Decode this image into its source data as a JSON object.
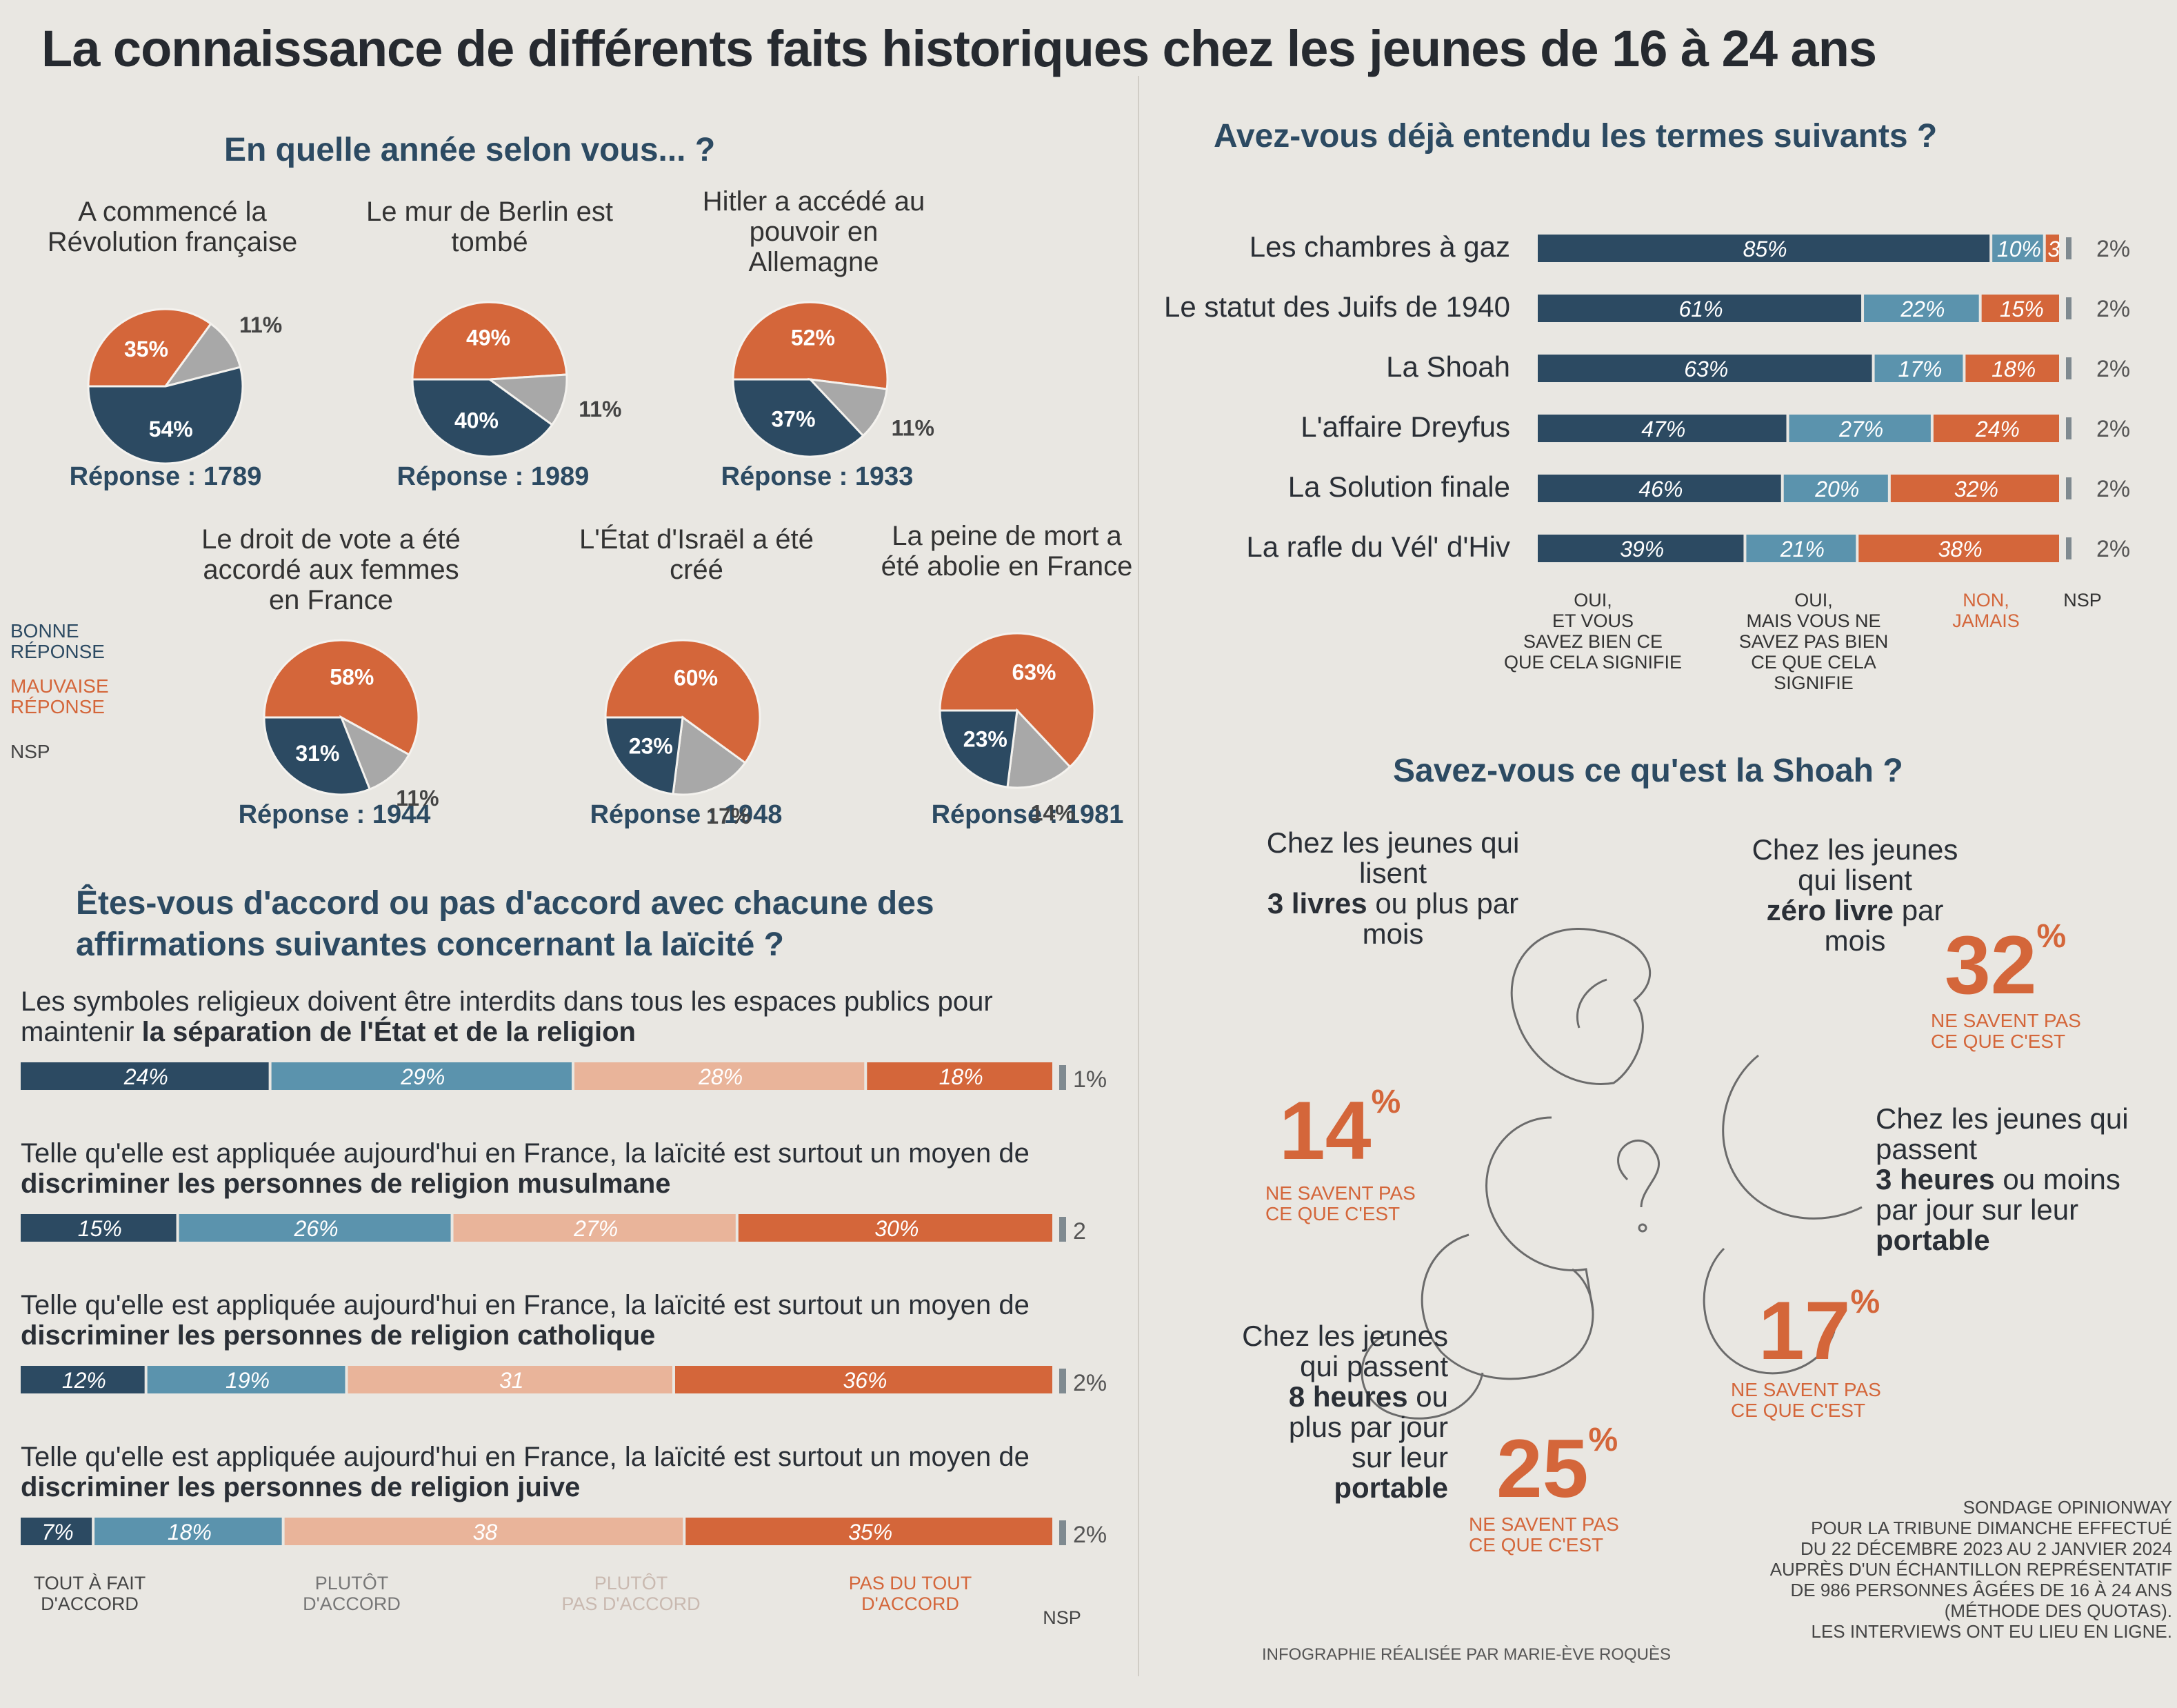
{
  "title": "La connaissance de différents faits historiques chez les jeunes de 16 à 24 ans",
  "colors": {
    "dark": "#2c4a62",
    "mid": "#5b93ad",
    "light": "#e9b49a",
    "orange": "#d4663a",
    "grey": "#a8a8a8",
    "nsp": "#7f8a90"
  },
  "pies": {
    "title": "En quelle année selon vous... ?",
    "legend": {
      "good": "BONNE\nRÉPONSE",
      "bad": "MAUVAISE\nRÉPONSE",
      "nsp": "NSP"
    },
    "items": [
      {
        "question": "A commencé la Révolution française",
        "good": "54%",
        "bad": "35%",
        "nsp": "11%",
        "values": [
          54,
          35,
          11
        ],
        "answer": "Réponse : 1789"
      },
      {
        "question": "Le mur de Berlin est tombé",
        "good": "40%",
        "bad": "49%",
        "nsp": "11%",
        "values": [
          40,
          49,
          11
        ],
        "answer": "Réponse : 1989"
      },
      {
        "question": "Hitler a accédé au pouvoir en Allemagne",
        "good": "37%",
        "bad": "52%",
        "nsp": "11%",
        "values": [
          37,
          52,
          11
        ],
        "answer": "Réponse : 1933"
      },
      {
        "question": "Le droit de vote a été accordé aux femmes en France",
        "good": "31%",
        "bad": "58%",
        "nsp": "11%",
        "values": [
          31,
          58,
          11
        ],
        "answer": "Réponse : 1944"
      },
      {
        "question": "L'État d'Israël a été créé",
        "good": "23%",
        "bad": "60%",
        "nsp": "17%",
        "values": [
          23,
          60,
          17
        ],
        "answer": "Réponse : 1948"
      },
      {
        "question": "La peine de mort a été abolie en France",
        "good": "23%",
        "bad": "63%",
        "nsp": "14%",
        "values": [
          23,
          63,
          14
        ],
        "answer": "Réponse : 1981"
      }
    ]
  },
  "terms": {
    "title": "Avez-vous déjà entendu les termes suivants ?",
    "columns": [
      "OUI,\nET VOUS\nSAVEZ BIEN CE\nQUE CELA SIGNIFIE",
      "OUI,\nMAIS VOUS NE\nSAVEZ PAS BIEN\nCE QUE CELA\nSIGNIFIE",
      "NON,\nJAMAIS",
      "NSP"
    ],
    "rows": [
      {
        "label": "Les chambres à gaz",
        "values": [
          85,
          10,
          3,
          2
        ],
        "texts": [
          "85%",
          "10%",
          "3",
          "2%"
        ]
      },
      {
        "label": "Le statut des Juifs de 1940",
        "values": [
          61,
          22,
          15,
          2
        ],
        "texts": [
          "61%",
          "22%",
          "15%",
          "2%"
        ]
      },
      {
        "label": "La Shoah",
        "values": [
          63,
          17,
          18,
          2
        ],
        "texts": [
          "63%",
          "17%",
          "18%",
          "2%"
        ]
      },
      {
        "label": "L'affaire Dreyfus",
        "values": [
          47,
          27,
          24,
          2
        ],
        "texts": [
          "47%",
          "27%",
          "24%",
          "2%"
        ]
      },
      {
        "label": "La Solution finale",
        "values": [
          46,
          20,
          32,
          2
        ],
        "texts": [
          "46%",
          "20%",
          "32%",
          "2%"
        ]
      },
      {
        "label": "La rafle du Vél' d'Hiv",
        "values": [
          39,
          21,
          38,
          2
        ],
        "texts": [
          "39%",
          "21%",
          "38%",
          "2%"
        ]
      }
    ]
  },
  "laicite": {
    "title": "Êtes-vous d'accord ou pas d'accord avec chacune des affirmations suivantes concernant la laïcité ?",
    "columns": [
      "TOUT À FAIT\nD'ACCORD",
      "PLUTÔT\nD'ACCORD",
      "PLUTÔT\nPAS D'ACCORD",
      "PAS DU TOUT\nD'ACCORD",
      "NSP"
    ],
    "rows": [
      {
        "text": "Les symboles religieux doivent être interdits dans tous les espaces publics pour maintenir ",
        "bold": "la séparation de l'État et de la religion",
        "values": [
          24,
          29,
          28,
          18,
          1
        ],
        "texts": [
          "24%",
          "29%",
          "28%",
          "18%",
          "1%"
        ]
      },
      {
        "text": "Telle qu'elle est appliquée aujourd'hui en France, la laïcité est surtout un moyen de ",
        "bold": "discriminer les personnes de religion musulmane",
        "values": [
          15,
          26,
          27,
          30,
          2
        ],
        "texts": [
          "15%",
          "26%",
          "27%",
          "30%",
          "2"
        ]
      },
      {
        "text": "Telle qu'elle est appliquée aujourd'hui en France, la laïcité est surtout un moyen de ",
        "bold": "discriminer les personnes de religion catholique",
        "values": [
          12,
          19,
          31,
          36,
          2
        ],
        "texts": [
          "12%",
          "19%",
          "31",
          "36%",
          "2%"
        ]
      },
      {
        "text": "Telle qu'elle est appliquée aujourd'hui en France, la laïcité est surtout un moyen de ",
        "bold": "discriminer les personnes de religion juive",
        "values": [
          7,
          18,
          38,
          35,
          2
        ],
        "texts": [
          "7%",
          "18%",
          "38",
          "35%",
          "2%"
        ]
      }
    ]
  },
  "shoah": {
    "title": "Savez-vous ce qu'est la Shoah ?",
    "groups": [
      {
        "pre": "Chez les jeunes qui lisent",
        "bold": "3 livres",
        "post": " ou plus par mois",
        "pct": "14",
        "sup": "%",
        "note": "NE SAVENT PAS\nCE QUE C'EST"
      },
      {
        "pre": "Chez les jeunes qui lisent",
        "bold": "zéro livre",
        "post": " par mois",
        "pct": "32",
        "sup": "%",
        "note": "NE SAVENT PAS\nCE QUE C'EST"
      },
      {
        "pre": "Chez les jeunes qui passent",
        "bold": "3 heures",
        "post": " ou moins par jour sur leur ",
        "bold2": "portable",
        "pct": "17",
        "sup": "%",
        "note": "NE SAVENT PAS\nCE QUE C'EST"
      },
      {
        "pre": "Chez les jeunes qui passent",
        "bold": "8 heures",
        "post": " ou plus par jour sur leur ",
        "bold2": "portable",
        "pct": "25",
        "sup": "%",
        "note": "NE SAVENT PAS\nCE QUE C'EST"
      }
    ]
  },
  "footer": {
    "infographie": "INFOGRAPHIE RÉALISÉE PAR MARIE-ÈVE ROQUÈS",
    "credits": "SONDAGE OPINIONWAY\nPOUR LA TRIBUNE DIMANCHE EFFECTUÉ\nDU 22 DÉCEMBRE 2023 AU 2 JANVIER 2024\nAUPRÈS D'UN ÉCHANTILLON REPRÉSENTATIF\nDE 986 PERSONNES ÂGÉES DE 16 À 24 ANS\n(MÉTHODE DES QUOTAS).\nLES INTERVIEWS ONT EU LIEU EN LIGNE."
  }
}
